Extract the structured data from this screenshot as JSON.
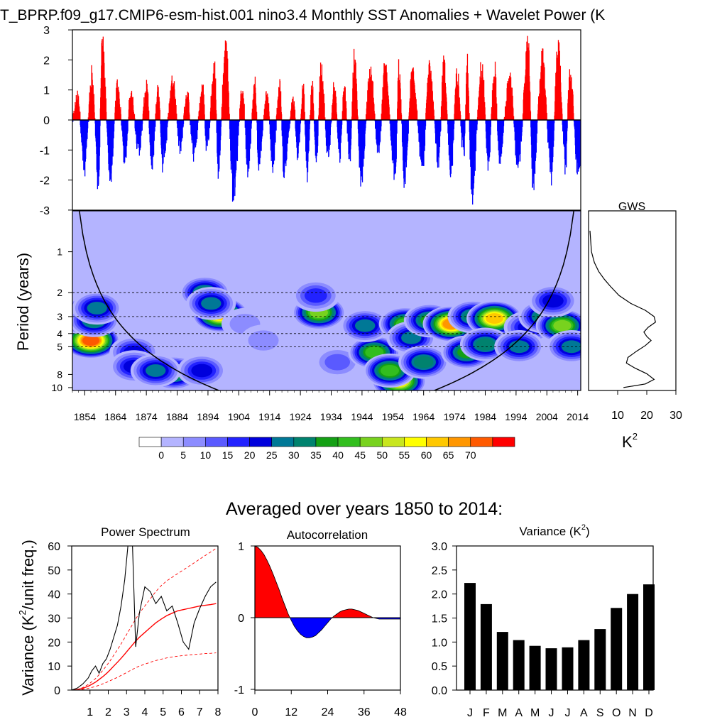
{
  "chart_data": [
    {
      "id": "sst_anomaly",
      "type": "area",
      "title": "T_BPRP.f09_g17.CMIP6-esm-hist.001 nino3.4 Monthly SST Anomalies + Wavelet Power (K",
      "ylim": [
        -3,
        3
      ],
      "yticks": [
        "3",
        "2",
        "1",
        "0",
        "-1",
        "-2",
        "-3"
      ],
      "xlim": [
        1850,
        2015
      ],
      "colors": {
        "positive": "#ff0000",
        "negative": "#0000ff"
      },
      "x": [
        1851.5,
        1853.8,
        1856.2,
        1858.3,
        1859.5,
        1862.2,
        1864.5,
        1867.0,
        1868.8,
        1871.4,
        1874.0,
        1875.6,
        1877.7,
        1879.2,
        1882.5,
        1884.8,
        1887.0,
        1889.3,
        1892.2,
        1893.4,
        1896.0,
        1897.2,
        1899.6,
        1902.1,
        1905.1,
        1906.8,
        1909.2,
        1910.3,
        1913.0,
        1914.8,
        1917.2,
        1918.5,
        1921.6,
        1923.0,
        1924.8,
        1926.0,
        1927.7,
        1929.0,
        1930.6,
        1932.8,
        1934.9,
        1936.6,
        1938.1,
        1939.9,
        1941.4,
        1943.5,
        1946.6,
        1949.3,
        1951.2,
        1954.7,
        1955.8,
        1957.7,
        1960.2,
        1963.5,
        1965.7,
        1968.8,
        1970.3,
        1972.8,
        1974.7,
        1976.9,
        1978.0,
        1979.5,
        1982.8,
        1984.8,
        1986.9,
        1988.4,
        1991.8,
        1994.6,
        1997.8,
        1999.3,
        2002.4,
        2005.3,
        2007.5,
        2009.9,
        2011.3,
        2013.9
      ],
      "y": [
        1.0,
        -1.9,
        1.8,
        -2.6,
        3.0,
        -2.3,
        1.4,
        -1.6,
        1.1,
        -1.2,
        1.3,
        -1.8,
        1.2,
        -1.7,
        1.6,
        -1.1,
        1.0,
        -1.3,
        1.3,
        -1.2,
        2.0,
        -1.9,
        3.0,
        -3.0,
        1.2,
        -1.8,
        1.4,
        -1.8,
        1.1,
        -1.7,
        1.3,
        -2.0,
        0.8,
        -1.4,
        1.2,
        -2.1,
        1.3,
        -1.6,
        2.1,
        -1.4,
        1.3,
        -1.6,
        1.2,
        -1.5,
        2.4,
        -2.2,
        1.8,
        -1.4,
        2.0,
        -2.1,
        2.0,
        -2.4,
        1.9,
        -1.7,
        2.0,
        -1.6,
        2.2,
        -2.0,
        1.8,
        -1.5,
        2.2,
        -2.9,
        2.2,
        -1.7,
        2.0,
        -1.5,
        1.6,
        -1.9,
        3.0,
        -2.4,
        2.4,
        -2.1,
        3.0,
        -1.8,
        2.1,
        -1.8
      ]
    },
    {
      "id": "wavelet_power",
      "type": "heatmap",
      "ylabel": "Period (years)",
      "yticks": [
        "1",
        "2",
        "3",
        "4",
        "5",
        "8",
        "10"
      ],
      "xticks": [
        "1854",
        "1864",
        "1874",
        "1884",
        "1894",
        "1904",
        "1914",
        "1924",
        "1934",
        "1944",
        "1954",
        "1964",
        "1974",
        "1984",
        "1994",
        "2004",
        "2014"
      ],
      "colorbar_ticks": [
        "0",
        "5",
        "10",
        "15",
        "20",
        "25",
        "30",
        "35",
        "40",
        "45",
        "50",
        "55",
        "60",
        "65",
        "70"
      ],
      "colors": [
        "#ffffff",
        "#b4b4ff",
        "#8c8cff",
        "#5a5aff",
        "#2222ff",
        "#0000dc",
        "#007896",
        "#00826e",
        "#14a014",
        "#32be1e",
        "#78d21e",
        "#c8e61e",
        "#ffff00",
        "#ffc800",
        "#ff9600",
        "#ff5a00",
        "#ff0000"
      ],
      "dashed_periods": [
        2,
        3,
        4,
        5
      ],
      "blobs": [
        {
          "year": 1856,
          "period": 4.5,
          "power": 72
        },
        {
          "year": 1852,
          "period": 3.0,
          "power": 40
        },
        {
          "year": 1857,
          "period": 3.2,
          "power": 30
        },
        {
          "year": 1858,
          "period": 2.6,
          "power": 25
        },
        {
          "year": 1870,
          "period": 5.5,
          "power": 22
        },
        {
          "year": 1870,
          "period": 7.0,
          "power": 22
        },
        {
          "year": 1883,
          "period": 7.8,
          "power": 38
        },
        {
          "year": 1877,
          "period": 7.5,
          "power": 28
        },
        {
          "year": 1892,
          "period": 7.5,
          "power": 22
        },
        {
          "year": 1898,
          "period": 2.9,
          "power": 62
        },
        {
          "year": 1893,
          "period": 2.0,
          "power": 30
        },
        {
          "year": 1895,
          "period": 2.4,
          "power": 25
        },
        {
          "year": 1906,
          "period": 3.4,
          "power": 8
        },
        {
          "year": 1912,
          "period": 4.5,
          "power": 8
        },
        {
          "year": 1930,
          "period": 2.8,
          "power": 48
        },
        {
          "year": 1929,
          "period": 2.1,
          "power": 15
        },
        {
          "year": 1936,
          "period": 6.5,
          "power": 12
        },
        {
          "year": 1948,
          "period": 5.5,
          "power": 40
        },
        {
          "year": 1956,
          "period": 9.0,
          "power": 55
        },
        {
          "year": 1953,
          "period": 7.5,
          "power": 40
        },
        {
          "year": 1945,
          "period": 3.5,
          "power": 25
        },
        {
          "year": 1958,
          "period": 3.4,
          "power": 42
        },
        {
          "year": 1960,
          "period": 4.3,
          "power": 25
        },
        {
          "year": 1966,
          "period": 3.2,
          "power": 38
        },
        {
          "year": 1964,
          "period": 6.5,
          "power": 30
        },
        {
          "year": 1973,
          "period": 3.4,
          "power": 68
        },
        {
          "year": 1978,
          "period": 5.5,
          "power": 35
        },
        {
          "year": 1980,
          "period": 3.0,
          "power": 30
        },
        {
          "year": 1987,
          "period": 3.1,
          "power": 62
        },
        {
          "year": 1984,
          "period": 4.8,
          "power": 30
        },
        {
          "year": 1998,
          "period": 3.6,
          "power": 22
        },
        {
          "year": 1995,
          "period": 5.0,
          "power": 25
        },
        {
          "year": 2003,
          "period": 3.0,
          "power": 30
        },
        {
          "year": 2009,
          "period": 3.5,
          "power": 45
        },
        {
          "year": 2006,
          "period": 2.3,
          "power": 22
        },
        {
          "year": 2012,
          "period": 5.0,
          "power": 25
        }
      ]
    },
    {
      "id": "gws",
      "type": "line",
      "title": "GWS",
      "xticks": [
        "10",
        "20",
        "30"
      ],
      "xlabel": "K²",
      "xlim": [
        0,
        30
      ],
      "x": [
        0.5,
        1.0,
        2.0,
        3.5,
        5.5,
        7.5,
        10.5,
        14.5,
        19.5,
        22.5,
        23.0,
        20.5,
        19.0,
        20.0,
        21.5,
        19.5,
        16.5,
        13.5,
        13.0,
        16.0,
        20.0,
        22.5,
        19.5,
        12.0
      ],
      "period": [
        0.7,
        1.0,
        1.2,
        1.4,
        1.6,
        1.8,
        2.1,
        2.4,
        2.7,
        3.0,
        3.3,
        3.6,
        3.9,
        4.2,
        4.5,
        4.9,
        5.4,
        6.0,
        6.6,
        7.2,
        7.9,
        8.7,
        9.4,
        10.0
      ]
    },
    {
      "id": "power_spectrum",
      "type": "line",
      "title": "Power Spectrum",
      "ylabel": "Variance (K²/unit freq.)",
      "xticks": [
        "1",
        "2",
        "3",
        "4",
        "5",
        "6",
        "7",
        "8"
      ],
      "yticks": [
        "60",
        "50",
        "40",
        "30",
        "20",
        "10",
        "0"
      ],
      "xlim": [
        0,
        8
      ],
      "ylim": [
        0,
        60
      ],
      "x": [
        0,
        0.3,
        0.6,
        0.9,
        1.1,
        1.3,
        1.5,
        1.7,
        1.9,
        2.1,
        2.3,
        2.5,
        2.7,
        2.9,
        3.1,
        3.3,
        3.5,
        3.7,
        4.0,
        4.3,
        4.6,
        4.9,
        5.2,
        5.5,
        5.8,
        6.1,
        6.4,
        6.7,
        7.0,
        7.3,
        7.6,
        7.9
      ],
      "y": [
        0,
        0.8,
        2.5,
        5.0,
        8.0,
        10.0,
        7.0,
        11.0,
        13.0,
        17.0,
        22.0,
        27.0,
        35.0,
        46.0,
        62.0,
        66.0,
        18.0,
        32.0,
        43.0,
        41.0,
        36.0,
        39.0,
        33.0,
        35.0,
        28.0,
        20.0,
        17.0,
        28.0,
        34.0,
        39.0,
        43.0,
        45.0
      ],
      "series": [
        {
          "name": "red_noise",
          "y": [
            0,
            0.2,
            0.7,
            1.6,
            2.4,
            3.3,
            4.4,
            5.6,
            6.9,
            8.4,
            10.0,
            11.6,
            13.2,
            15.0,
            16.8,
            18.6,
            20.4,
            22.0,
            24.0,
            26.0,
            28.0,
            29.6,
            31.0,
            32.0,
            33.0,
            33.5,
            34.0,
            34.5,
            35.0,
            35.3,
            35.6,
            36.0
          ]
        },
        {
          "name": "confidence_upper",
          "y": [
            0,
            0.3,
            1.0,
            2.3,
            3.5,
            4.8,
            6.4,
            8.2,
            10.1,
            12.2,
            14.5,
            16.8,
            19.2,
            21.8,
            24.4,
            27.0,
            29.6,
            32.0,
            35.0,
            38.0,
            41.0,
            43.5,
            45.5,
            47.0,
            48.5,
            50.0,
            51.5,
            53.0,
            54.5,
            56.0,
            57.5,
            59.0
          ]
        },
        {
          "name": "confidence_lower",
          "y": [
            0,
            0.1,
            0.3,
            0.7,
            1.1,
            1.5,
            2.0,
            2.6,
            3.2,
            3.9,
            4.6,
            5.3,
            6.1,
            6.9,
            7.7,
            8.5,
            9.3,
            10.0,
            10.8,
            11.6,
            12.3,
            12.9,
            13.4,
            13.8,
            14.1,
            14.4,
            14.6,
            14.8,
            15.0,
            15.2,
            15.3,
            15.5
          ]
        }
      ]
    },
    {
      "id": "autocorrelation",
      "type": "area",
      "title": "Autocorrelation",
      "xticks": [
        "0",
        "12",
        "24",
        "36",
        "48"
      ],
      "yticks": [
        "1",
        "0",
        "-1"
      ],
      "xlim": [
        0,
        48
      ],
      "ylim": [
        -1,
        1
      ],
      "x": [
        0,
        1,
        2,
        3,
        4,
        5,
        6,
        7,
        8,
        9,
        10,
        11,
        12,
        13,
        14,
        15,
        16,
        17,
        18,
        19,
        20,
        21,
        22,
        23,
        24,
        25,
        26,
        27,
        28,
        29,
        30,
        31,
        32,
        33,
        34,
        35,
        36,
        37,
        38,
        39,
        40,
        41,
        42,
        43,
        44,
        45,
        46,
        47,
        48
      ],
      "y": [
        1.0,
        0.98,
        0.94,
        0.88,
        0.8,
        0.71,
        0.61,
        0.5,
        0.39,
        0.27,
        0.16,
        0.05,
        -0.04,
        -0.12,
        -0.18,
        -0.23,
        -0.26,
        -0.28,
        -0.28,
        -0.27,
        -0.25,
        -0.21,
        -0.17,
        -0.12,
        -0.07,
        -0.02,
        0.02,
        0.05,
        0.08,
        0.1,
        0.11,
        0.12,
        0.12,
        0.11,
        0.1,
        0.08,
        0.06,
        0.04,
        0.02,
        0.0,
        -0.01,
        -0.02,
        -0.02,
        -0.02,
        -0.02,
        -0.02,
        -0.02,
        -0.02,
        -0.02
      ],
      "colors": {
        "positive": "#ff0000",
        "negative": "#0000ff"
      }
    },
    {
      "id": "monthly_variance",
      "type": "bar",
      "title": "Variance (K²)",
      "categories": [
        "J",
        "F",
        "M",
        "A",
        "M",
        "J",
        "J",
        "A",
        "S",
        "O",
        "N",
        "D"
      ],
      "values": [
        2.23,
        1.79,
        1.21,
        1.04,
        0.92,
        0.87,
        0.89,
        1.04,
        1.27,
        1.71,
        2.0,
        2.2
      ],
      "yticks": [
        "3.0",
        "2.5",
        "2.0",
        "1.5",
        "1.0",
        "0.5",
        "0.0"
      ],
      "ylim": [
        0,
        3
      ]
    }
  ],
  "text": {
    "main_title": "T_BPRP.f09_g17.CMIP6-esm-hist.001 nino3.4 Monthly SST Anomalies + Wavelet Power (K",
    "subtitle": "Averaged over years 1850 to 2014:",
    "period_ylabel": "Period (years)",
    "gws_title": "GWS",
    "gws_unit": "K",
    "gws_unit_sup": "2",
    "ps_title": "Power Spectrum",
    "ps_ylabel_a": "Variance (K",
    "ps_ylabel_sup": "2",
    "ps_ylabel_b": "/unit freq.)",
    "ac_title": "Autocorrelation",
    "var_title_a": "Variance (K",
    "var_title_sup": "2",
    "var_title_b": ")"
  }
}
